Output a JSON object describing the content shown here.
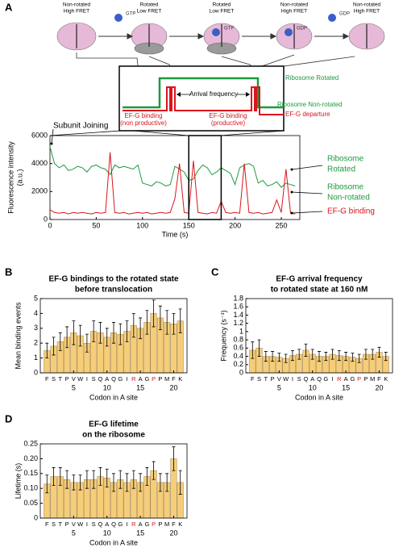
{
  "panels": [
    "A",
    "B",
    "C",
    "D"
  ],
  "schematic": {
    "states": [
      [
        "Non-rotated",
        "High FRET"
      ],
      [
        "Rotated",
        "Low FRET"
      ],
      [
        "Rotated",
        "Low FRET"
      ],
      [
        "Non-rotated",
        "High FRET"
      ],
      [
        "Non-rotated",
        "High FRET"
      ]
    ],
    "nucleotides": [
      "GTP",
      "GTP",
      "GDP",
      "GDP"
    ],
    "inset": {
      "arrival": "Arrival frequency",
      "rotated": "Ribosome Rotated",
      "nonrotated": "Ribosome Non-rotated",
      "binding1": [
        "EF-G binding",
        "(non productive)"
      ],
      "binding2": [
        "EF-G binding",
        "(productive)"
      ],
      "departure": "EF-G departure"
    }
  },
  "chart_data": [
    {
      "type": "line",
      "xlabel": "Time (s)",
      "ylabel": [
        "Fluorescence intensity",
        "(a.u.)"
      ],
      "xlim": [
        0,
        270
      ],
      "ylim": [
        0,
        6000
      ],
      "xticks": [
        0,
        50,
        100,
        150,
        200,
        250
      ],
      "yticks": [
        0,
        2000,
        4000,
        6000
      ],
      "x": [
        0,
        5,
        10,
        15,
        20,
        25,
        30,
        35,
        40,
        45,
        50,
        55,
        60,
        65,
        70,
        75,
        80,
        85,
        90,
        95,
        100,
        105,
        110,
        115,
        120,
        125,
        130,
        135,
        140,
        145,
        150,
        155,
        160,
        165,
        170,
        175,
        180,
        185,
        190,
        195,
        200,
        205,
        210,
        215,
        220,
        225,
        230,
        235,
        240,
        245,
        250,
        255,
        260,
        265
      ],
      "series": [
        {
          "name": "Ribosome Rotated / Non-rotated",
          "color": "#1e9a3c",
          "values": [
            5200,
            4000,
            3700,
            3900,
            3500,
            3600,
            3800,
            3700,
            3400,
            3800,
            3900,
            3700,
            3600,
            3200,
            3900,
            3700,
            3800,
            3700,
            3600,
            3900,
            2600,
            2500,
            2400,
            2700,
            2600,
            2400,
            2500,
            3800,
            3600,
            3400,
            2800,
            2900,
            3500,
            3900,
            3700,
            3200,
            3400,
            3700,
            3500,
            3300,
            2500,
            3700,
            3900,
            4000,
            3800,
            2600,
            2800,
            2400,
            2500,
            2700,
            2300,
            2600,
            2500,
            2400
          ]
        },
        {
          "name": "EF-G binding",
          "color": "#d9151e",
          "values": [
            700,
            500,
            450,
            500,
            400,
            500,
            450,
            500,
            450,
            400,
            500,
            450,
            500,
            4800,
            500,
            450,
            500,
            400,
            450,
            500,
            450,
            500,
            400,
            450,
            500,
            450,
            500,
            1500,
            4000,
            500,
            450,
            4200,
            500,
            450,
            400,
            500,
            450,
            1300,
            500,
            450,
            500,
            450,
            4000,
            500,
            450,
            500,
            400,
            450,
            500,
            1400,
            500,
            3600,
            450,
            400
          ]
        }
      ],
      "annotations": [
        {
          "lines": [
            "Subunit Joining"
          ],
          "color": "#000000"
        },
        {
          "lines": [
            "Ribosome",
            "Rotated"
          ],
          "color": "#1e9a3c"
        },
        {
          "lines": [
            "Ribosome",
            "Non-rotated"
          ],
          "color": "#1e9a3c"
        },
        {
          "lines": [
            "EF-G binding"
          ],
          "color": "#d9151e"
        }
      ]
    },
    {
      "type": "bar",
      "title": [
        "EF-G bindings to the rotated state",
        "before translocation"
      ],
      "ylabel": "Mean binding events",
      "xlabel": "Codon in A site",
      "categories": [
        "F",
        "S",
        "T",
        "P",
        "V",
        "W",
        "I",
        "S",
        "Q",
        "A",
        "Q",
        "G",
        "I",
        "R",
        "A",
        "G",
        "P",
        "P",
        "M",
        "F",
        "K"
      ],
      "category_colors": [
        "#000",
        "#000",
        "#000",
        "#000",
        "#000",
        "#000",
        "#000",
        "#000",
        "#000",
        "#000",
        "#000",
        "#000",
        "#000",
        "#d9151e",
        "#000",
        "#000",
        "#d9151e",
        "#000",
        "#000",
        "#000",
        "#000"
      ],
      "x": [
        1,
        2,
        3,
        4,
        5,
        6,
        7,
        8,
        9,
        10,
        11,
        12,
        13,
        14,
        15,
        16,
        17,
        18,
        19,
        20,
        21
      ],
      "values": [
        1.5,
        1.8,
        2.1,
        2.4,
        2.7,
        2.5,
        2.0,
        2.8,
        2.7,
        2.4,
        2.7,
        2.6,
        2.8,
        3.2,
        3.0,
        3.4,
        4.0,
        3.7,
        3.4,
        3.3,
        3.5
      ],
      "errors": [
        0.5,
        0.6,
        0.6,
        0.7,
        0.8,
        0.7,
        0.6,
        0.7,
        0.7,
        0.6,
        0.7,
        0.7,
        0.7,
        0.8,
        0.7,
        0.8,
        0.9,
        0.8,
        0.8,
        0.7,
        0.8
      ],
      "color": "#f6cd78",
      "xlim": [
        0,
        22
      ],
      "xticks": [
        5,
        10,
        15,
        20
      ],
      "ylim": [
        0,
        5
      ],
      "yticks": [
        0,
        1,
        2,
        3,
        4,
        5
      ]
    },
    {
      "type": "bar",
      "title": [
        "EF-G arrival frequency",
        "to rotated state at 160 nM"
      ],
      "ylabel": "Frequency (s⁻¹)",
      "xlabel": "Codon in A site",
      "categories": [
        "F",
        "S",
        "T",
        "P",
        "V",
        "W",
        "I",
        "S",
        "Q",
        "A",
        "Q",
        "G",
        "I",
        "R",
        "A",
        "G",
        "P",
        "P",
        "M",
        "F",
        "K"
      ],
      "category_colors": [
        "#000",
        "#000",
        "#000",
        "#000",
        "#000",
        "#000",
        "#000",
        "#000",
        "#000",
        "#000",
        "#000",
        "#000",
        "#000",
        "#d9151e",
        "#000",
        "#000",
        "#d9151e",
        "#000",
        "#000",
        "#000",
        "#000"
      ],
      "x": [
        1,
        2,
        3,
        4,
        5,
        6,
        7,
        8,
        9,
        10,
        11,
        12,
        13,
        14,
        15,
        16,
        17,
        18,
        19,
        20,
        21
      ],
      "values": [
        0.55,
        0.6,
        0.4,
        0.4,
        0.38,
        0.35,
        0.42,
        0.45,
        0.55,
        0.45,
        0.4,
        0.4,
        0.45,
        0.42,
        0.4,
        0.38,
        0.35,
        0.45,
        0.45,
        0.5,
        0.4
      ],
      "errors": [
        0.2,
        0.2,
        0.12,
        0.12,
        0.1,
        0.1,
        0.12,
        0.12,
        0.15,
        0.12,
        0.12,
        0.1,
        0.12,
        0.12,
        0.1,
        0.1,
        0.1,
        0.12,
        0.12,
        0.12,
        0.1
      ],
      "color": "#f6cd78",
      "xlim": [
        0,
        22
      ],
      "xticks": [
        5,
        10,
        15,
        20
      ],
      "ylim": [
        0,
        1.8
      ],
      "yticks": [
        0,
        0.2,
        0.4,
        0.6,
        0.8,
        1,
        1.2,
        1.4,
        1.6,
        1.8
      ]
    },
    {
      "type": "bar",
      "title": [
        "EF-G lifetime",
        "on the ribosome"
      ],
      "ylabel": "Lifetime (s)",
      "xlabel": "Codon in A site",
      "categories": [
        "F",
        "S",
        "T",
        "P",
        "V",
        "W",
        "I",
        "S",
        "Q",
        "A",
        "Q",
        "G",
        "I",
        "R",
        "A",
        "G",
        "P",
        "P",
        "M",
        "F",
        "K"
      ],
      "category_colors": [
        "#000",
        "#000",
        "#000",
        "#000",
        "#000",
        "#000",
        "#000",
        "#000",
        "#000",
        "#000",
        "#000",
        "#000",
        "#000",
        "#d9151e",
        "#000",
        "#000",
        "#d9151e",
        "#000",
        "#000",
        "#000",
        "#000"
      ],
      "x": [
        1,
        2,
        3,
        4,
        5,
        6,
        7,
        8,
        9,
        10,
        11,
        12,
        13,
        14,
        15,
        16,
        17,
        18,
        19,
        20,
        21
      ],
      "values": [
        0.115,
        0.14,
        0.14,
        0.13,
        0.12,
        0.12,
        0.13,
        0.13,
        0.14,
        0.135,
        0.12,
        0.13,
        0.12,
        0.13,
        0.12,
        0.14,
        0.16,
        0.12,
        0.12,
        0.2,
        0.12
      ],
      "errors": [
        0.03,
        0.03,
        0.03,
        0.03,
        0.025,
        0.025,
        0.03,
        0.03,
        0.03,
        0.03,
        0.03,
        0.03,
        0.03,
        0.03,
        0.03,
        0.03,
        0.03,
        0.03,
        0.03,
        0.04,
        0.04
      ],
      "color": "#f6cd78",
      "xlim": [
        0,
        22
      ],
      "xticks": [
        5,
        10,
        15,
        20
      ],
      "ylim": [
        0,
        0.25
      ],
      "yticks": [
        0,
        0.05,
        {
          "value": 0.1,
          "label": "0.10"
        },
        0.15,
        {
          "value": 0.2,
          "label": "0.20"
        },
        0.25
      ]
    }
  ]
}
